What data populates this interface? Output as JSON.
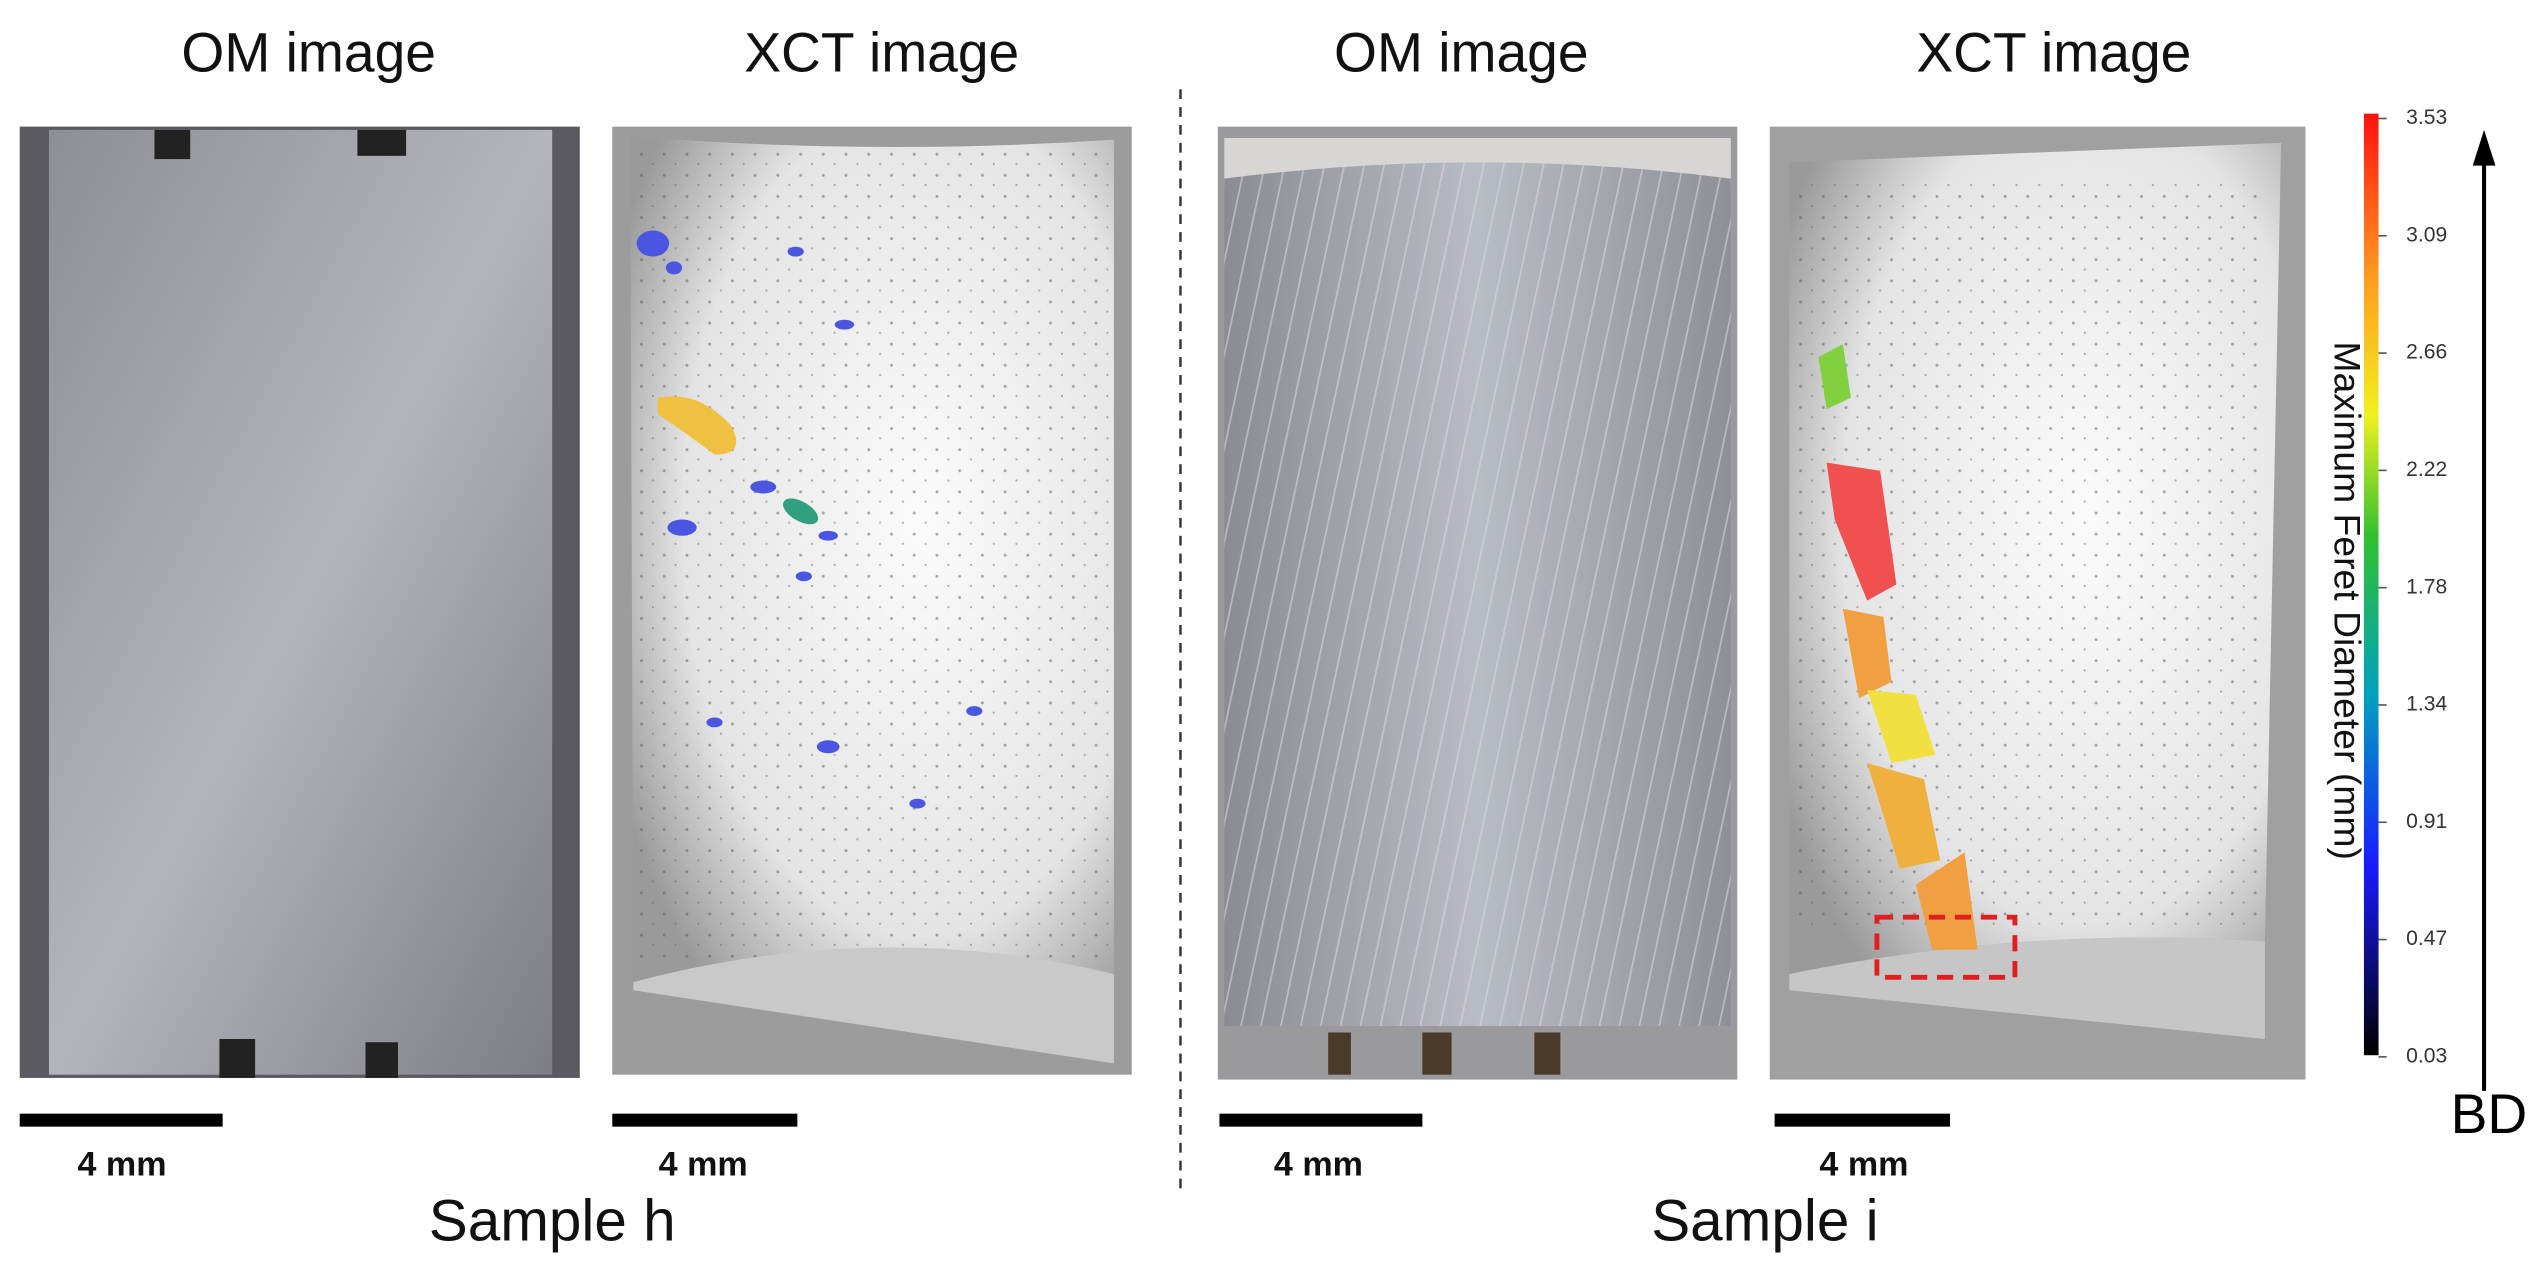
{
  "panels": [
    {
      "title": "OM image",
      "scale_bar": "4 mm"
    },
    {
      "title": "XCT image",
      "scale_bar": "4 mm"
    },
    {
      "title": "OM image",
      "scale_bar": "4 mm"
    },
    {
      "title": "XCT image",
      "scale_bar": "4 mm"
    }
  ],
  "samples": [
    "Sample h",
    "Sample i"
  ],
  "colorbar": {
    "label": "Maximum Feret Diameter (mm)",
    "ticks": [
      "3.53",
      "3.09",
      "2.66",
      "2.22",
      "1.78",
      "1.34",
      "0.91",
      "0.47",
      "0.03"
    ]
  },
  "arrow_label": "BD"
}
